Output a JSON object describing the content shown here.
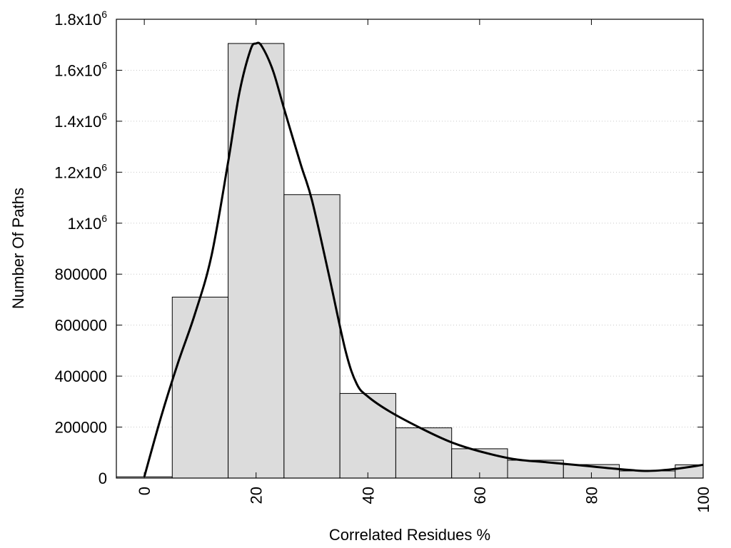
{
  "chart_data": {
    "type": "bar",
    "xlabel": "Correlated Residues %",
    "ylabel": "Number Of Paths",
    "title": "",
    "xlim": [
      -5,
      100
    ],
    "ylim": [
      0,
      1800000
    ],
    "x_ticks": [
      {
        "value": 0,
        "label": "0"
      },
      {
        "value": 20,
        "label": "20"
      },
      {
        "value": 40,
        "label": "40"
      },
      {
        "value": 60,
        "label": "60"
      },
      {
        "value": 80,
        "label": "80"
      },
      {
        "value": 100,
        "label": "100"
      }
    ],
    "y_ticks": [
      {
        "value": 0,
        "label": "0",
        "sup": ""
      },
      {
        "value": 200000,
        "label": "200000",
        "sup": ""
      },
      {
        "value": 400000,
        "label": "400000",
        "sup": ""
      },
      {
        "value": 600000,
        "label": "600000",
        "sup": ""
      },
      {
        "value": 800000,
        "label": "800000",
        "sup": ""
      },
      {
        "value": 1000000,
        "label": "1x10",
        "sup": "6"
      },
      {
        "value": 1200000,
        "label": "1.2x10",
        "sup": "6"
      },
      {
        "value": 1400000,
        "label": "1.4x10",
        "sup": "6"
      },
      {
        "value": 1600000,
        "label": "1.6x10",
        "sup": "6"
      },
      {
        "value": 1800000,
        "label": "1.8x10",
        "sup": "6"
      }
    ],
    "grid": "horizontal-dotted",
    "bars": [
      {
        "x": 0,
        "value": 5000
      },
      {
        "x": 10,
        "value": 710000
      },
      {
        "x": 20,
        "value": 1705000
      },
      {
        "x": 30,
        "value": 1112000
      },
      {
        "x": 40,
        "value": 332000
      },
      {
        "x": 50,
        "value": 197000
      },
      {
        "x": 60,
        "value": 115000
      },
      {
        "x": 70,
        "value": 70000
      },
      {
        "x": 80,
        "value": 53000
      },
      {
        "x": 90,
        "value": 28000
      },
      {
        "x": 100,
        "value": 52000
      }
    ],
    "bar_width": 10,
    "bar_color": "#dcdcdc",
    "curve": [
      {
        "x": 0,
        "y": 5000
      },
      {
        "x": 3,
        "y": 240000
      },
      {
        "x": 6,
        "y": 450000
      },
      {
        "x": 9,
        "y": 640000
      },
      {
        "x": 12,
        "y": 870000
      },
      {
        "x": 15,
        "y": 1240000
      },
      {
        "x": 17,
        "y": 1510000
      },
      {
        "x": 19,
        "y": 1680000
      },
      {
        "x": 20,
        "y": 1705000
      },
      {
        "x": 21,
        "y": 1695000
      },
      {
        "x": 23,
        "y": 1600000
      },
      {
        "x": 25,
        "y": 1450000
      },
      {
        "x": 28,
        "y": 1230000
      },
      {
        "x": 30,
        "y": 1090000
      },
      {
        "x": 33,
        "y": 800000
      },
      {
        "x": 36,
        "y": 500000
      },
      {
        "x": 38,
        "y": 370000
      },
      {
        "x": 40,
        "y": 320000
      },
      {
        "x": 44,
        "y": 260000
      },
      {
        "x": 50,
        "y": 190000
      },
      {
        "x": 55,
        "y": 140000
      },
      {
        "x": 60,
        "y": 105000
      },
      {
        "x": 66,
        "y": 75000
      },
      {
        "x": 72,
        "y": 62000
      },
      {
        "x": 78,
        "y": 50000
      },
      {
        "x": 84,
        "y": 37000
      },
      {
        "x": 90,
        "y": 28000
      },
      {
        "x": 95,
        "y": 36000
      },
      {
        "x": 100,
        "y": 52000
      }
    ],
    "curve_color": "#000000"
  }
}
